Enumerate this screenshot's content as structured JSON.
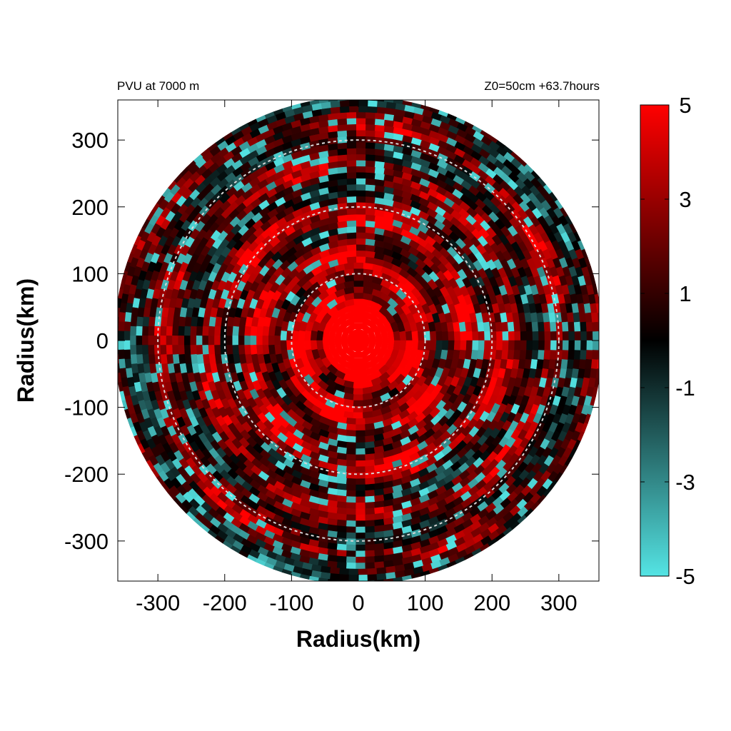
{
  "chart_data": {
    "type": "heatmap",
    "title_left": "PVU at  7000 m",
    "title_right": "Z0=50cm  +63.7hours",
    "xlabel": "Radius(km)",
    "ylabel": "Radius(km)",
    "xlim": [
      -360,
      360
    ],
    "ylim": [
      -360,
      360
    ],
    "xticks": [
      -300,
      -200,
      -100,
      0,
      100,
      200,
      300
    ],
    "yticks": [
      300,
      200,
      100,
      0,
      -100,
      -200,
      -300
    ],
    "reference_circles_km": [
      100,
      200,
      300
    ],
    "domain_radius_km": 365,
    "colorbar": {
      "min": -5,
      "max": 5,
      "ticks": [
        5,
        3,
        1,
        -1,
        -3,
        -5
      ],
      "colors": [
        "#54e4e4",
        "#000000",
        "#ff0000"
      ]
    },
    "color_scale_colors": {
      "high": "#ff0000",
      "mid": "#000000",
      "low": "#54e4e4"
    }
  }
}
